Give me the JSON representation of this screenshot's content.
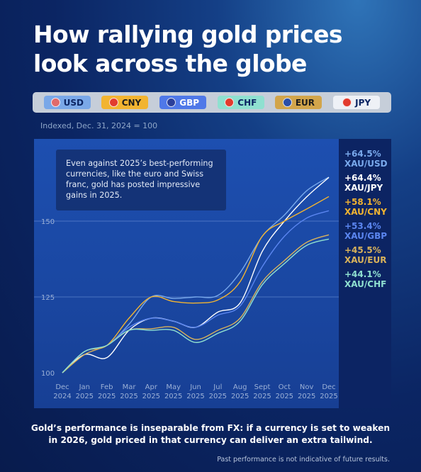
{
  "title_line1": "How rallying gold prices",
  "title_line2": "look across the globe",
  "legend": [
    {
      "label": "USD",
      "chip_bg": "#7aa8e8",
      "text_color": "#0b2563",
      "flag_icon": "us-flag-icon",
      "flag_color": "#e06a6a"
    },
    {
      "label": "CNY",
      "chip_bg": "#f2b431",
      "text_color": "#1b1b1b",
      "flag_icon": "china-flag-icon",
      "flag_color": "#e23b2e"
    },
    {
      "label": "GBP",
      "chip_bg": "#4f78e8",
      "text_color": "#ffffff",
      "flag_icon": "uk-flag-icon",
      "flag_color": "#2b3f9a"
    },
    {
      "label": "CHF",
      "chip_bg": "#8fe0d0",
      "text_color": "#0b2563",
      "flag_icon": "swiss-flag-icon",
      "flag_color": "#e23b2e"
    },
    {
      "label": "EUR",
      "chip_bg": "#d2a54b",
      "text_color": "#1b1b1b",
      "flag_icon": "eu-flag-icon",
      "flag_color": "#2b4fa8"
    },
    {
      "label": "JPY",
      "chip_bg": "#eef1f6",
      "text_color": "#0b2563",
      "flag_icon": "japan-flag-icon",
      "flag_color": "#e23b2e"
    }
  ],
  "subtitle": "Indexed, Dec. 31, 2024 = 100",
  "annotation": [
    "Even against 2025’s best-performing",
    "currencies, like the euro and Swiss",
    "franc, gold has posted impressive",
    "gains in 2025."
  ],
  "footer_line1": "Gold’s performance is inseparable from FX: if a currency is set to weaken",
  "footer_line2": "in 2026, gold priced in that currency can deliver an extra tailwind.",
  "disclaimer": "Past performance is not indicative of future results.",
  "chart_data": {
    "type": "line",
    "ylim": [
      100,
      164
    ],
    "yticks": [
      100,
      125,
      150
    ],
    "grid": "horizontal",
    "x_months": [
      {
        "m": "Dec",
        "y": "2024"
      },
      {
        "m": "Jan",
        "y": "2025"
      },
      {
        "m": "Feb",
        "y": "2025"
      },
      {
        "m": "Mar",
        "y": "2025"
      },
      {
        "m": "Apr",
        "y": "2025"
      },
      {
        "m": "May",
        "y": "2025"
      },
      {
        "m": "Jun",
        "y": "2025"
      },
      {
        "m": "Jul",
        "y": "2025"
      },
      {
        "m": "Aug",
        "y": "2025"
      },
      {
        "m": "Sept",
        "y": "2025"
      },
      {
        "m": "Oct",
        "y": "2025"
      },
      {
        "m": "Nov",
        "y": "2025"
      },
      {
        "m": "Dec",
        "y": "2025"
      }
    ],
    "series": [
      {
        "name": "XAU/USD",
        "change": "+64.5%",
        "color": "#79a9ec",
        "values": [
          100,
          107,
          109,
          116,
          125,
          124.5,
          125,
          125.5,
          133,
          145,
          152,
          160,
          164.5
        ]
      },
      {
        "name": "XAU/JPY",
        "change": "+64.4%",
        "color": "#ffffff",
        "values": [
          100,
          106,
          105,
          114,
          118,
          117,
          115,
          120,
          123,
          140,
          150,
          158,
          164.4
        ]
      },
      {
        "name": "XAU/CNY",
        "change": "+58.1%",
        "color": "#f2b431",
        "values": [
          100,
          107,
          109,
          118,
          125,
          123.5,
          123,
          124,
          130,
          145,
          150,
          154,
          158.1
        ]
      },
      {
        "name": "XAU/GBP",
        "change": "+53.4%",
        "color": "#5b86f0",
        "values": [
          100,
          107,
          109,
          115,
          118,
          117,
          115,
          119,
          122,
          135,
          145,
          151,
          153.4
        ]
      },
      {
        "name": "XAU/EUR",
        "change": "+45.5%",
        "color": "#d9b25a",
        "values": [
          100,
          106,
          109,
          114,
          114.5,
          115,
          111,
          114,
          118,
          130,
          137,
          143,
          145.5
        ]
      },
      {
        "name": "XAU/CHF",
        "change": "+44.1%",
        "color": "#8fe0d0",
        "values": [
          100,
          107,
          109,
          114,
          114,
          114,
          110,
          113,
          117,
          129,
          136,
          142,
          144.1
        ]
      }
    ]
  }
}
